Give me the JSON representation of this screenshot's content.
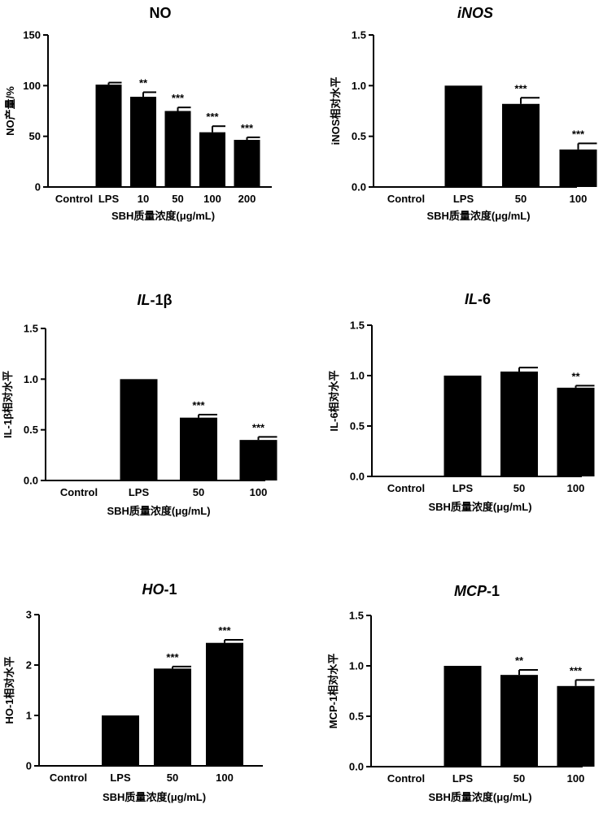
{
  "chart_data": [
    {
      "type": "bar",
      "title": "NO",
      "title_parts": [
        {
          "text": "NO",
          "italic": false
        }
      ],
      "ylabel": "NO产量/%",
      "xlabel": "SBH质量浓度(μg/mL)",
      "categories": [
        "Control",
        "LPS",
        "10",
        "50",
        "100",
        "200"
      ],
      "values": [
        0,
        101,
        89,
        75,
        54,
        46.5
      ],
      "errors": [
        0,
        2,
        4.5,
        3.5,
        6,
        2.5
      ],
      "significance": [
        "",
        "",
        "**",
        "***",
        "***",
        "***"
      ],
      "ylim": [
        0,
        150
      ],
      "yticks": [
        0,
        50,
        100,
        150
      ],
      "ytick_labels": [
        "0",
        "50",
        "100",
        "150"
      ],
      "grid": false,
      "bar_color": "#000000"
    },
    {
      "type": "bar",
      "title": "iNOS",
      "title_parts": [
        {
          "text": "iNOS",
          "italic": true
        }
      ],
      "ylabel": "iNOS相对水平",
      "xlabel": "SBH质量浓度(μg/mL)",
      "categories": [
        "Control",
        "LPS",
        "50",
        "100"
      ],
      "values": [
        0,
        1.0,
        0.82,
        0.37
      ],
      "errors": [
        0,
        0,
        0.06,
        0.06
      ],
      "significance": [
        "",
        "",
        "***",
        "***"
      ],
      "ylim": [
        0,
        1.5
      ],
      "yticks": [
        0,
        0.5,
        1.0,
        1.5
      ],
      "ytick_labels": [
        "0.0",
        "0.5",
        "1.0",
        "1.5"
      ],
      "grid": false,
      "bar_color": "#000000"
    },
    {
      "type": "bar",
      "title": "IL-1β",
      "title_parts": [
        {
          "text": "IL",
          "italic": true
        },
        {
          "text": "-1β",
          "italic": false
        }
      ],
      "ylabel": "IL-1β相对水平",
      "xlabel": "SBH质量浓度(μg/mL)",
      "categories": [
        "Control",
        "LPS",
        "50",
        "100"
      ],
      "values": [
        0,
        1.0,
        0.62,
        0.4
      ],
      "errors": [
        0,
        0,
        0.03,
        0.03
      ],
      "significance": [
        "",
        "",
        "***",
        "***"
      ],
      "ylim": [
        0,
        1.5
      ],
      "yticks": [
        0,
        0.5,
        1.0,
        1.5
      ],
      "ytick_labels": [
        "0.0",
        "0.5",
        "1.0",
        "1.5"
      ],
      "grid": false,
      "bar_color": "#000000"
    },
    {
      "type": "bar",
      "title": "IL-6",
      "title_parts": [
        {
          "text": "IL",
          "italic": true
        },
        {
          "text": "-6",
          "italic": false
        }
      ],
      "ylabel": "IL-6相对水平",
      "xlabel": "SBH质量浓度(μg/mL)",
      "categories": [
        "Control",
        "LPS",
        "50",
        "100"
      ],
      "values": [
        0,
        1.0,
        1.04,
        0.88
      ],
      "errors": [
        0,
        0,
        0.04,
        0.02
      ],
      "significance": [
        "",
        "",
        "",
        "**"
      ],
      "ylim": [
        0,
        1.5
      ],
      "yticks": [
        0,
        0.5,
        1.0,
        1.5
      ],
      "ytick_labels": [
        "0.0",
        "0.5",
        "1.0",
        "1.5"
      ],
      "grid": false,
      "bar_color": "#000000"
    },
    {
      "type": "bar",
      "title": "HO-1",
      "title_parts": [
        {
          "text": "HO",
          "italic": true
        },
        {
          "text": "-1",
          "italic": false
        }
      ],
      "ylabel": "HO-1相对水平",
      "xlabel": "SBH质量浓度(μg/mL)",
      "categories": [
        "Control",
        "LPS",
        "50",
        "100"
      ],
      "values": [
        0,
        1.0,
        1.93,
        2.44
      ],
      "errors": [
        0,
        0,
        0.04,
        0.06
      ],
      "significance": [
        "",
        "",
        "***",
        "***"
      ],
      "ylim": [
        0,
        3
      ],
      "yticks": [
        0,
        1,
        2,
        3
      ],
      "ytick_labels": [
        "0",
        "1",
        "2",
        "3"
      ],
      "grid": false,
      "bar_color": "#000000"
    },
    {
      "type": "bar",
      "title": "MCP-1",
      "title_parts": [
        {
          "text": "MCP",
          "italic": true
        },
        {
          "text": "-1",
          "italic": false
        }
      ],
      "ylabel": "MCP-1相对水平",
      "xlabel": "SBH质量浓度(μg/mL)",
      "categories": [
        "Control",
        "LPS",
        "50",
        "100"
      ],
      "values": [
        0,
        1.0,
        0.91,
        0.8
      ],
      "errors": [
        0,
        0,
        0.05,
        0.06
      ],
      "significance": [
        "",
        "",
        "**",
        "***"
      ],
      "ylim": [
        0,
        1.5
      ],
      "yticks": [
        0,
        0.5,
        1.0,
        1.5
      ],
      "ytick_labels": [
        "0.0",
        "0.5",
        "1.0",
        "1.5"
      ],
      "grid": false,
      "bar_color": "#000000"
    }
  ]
}
